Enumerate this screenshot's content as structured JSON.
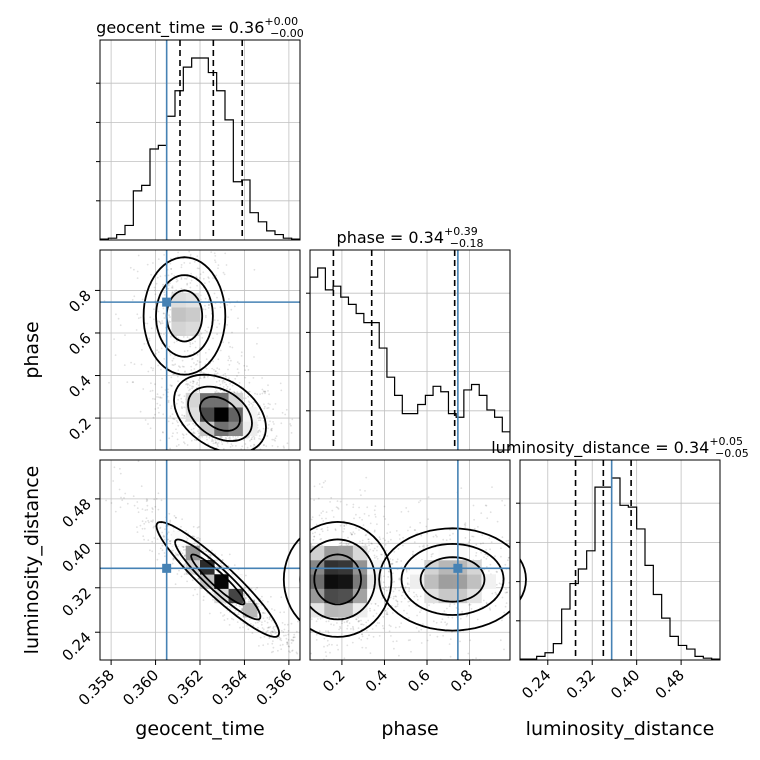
{
  "chart_data": {
    "type": "corner",
    "parameters": [
      "geocent_time",
      "phase",
      "luminosity_distance"
    ],
    "truths": {
      "geocent_time": 0.3605,
      "phase": 0.745,
      "luminosity_distance": 0.355
    },
    "colors": {
      "truth": "#4682b4",
      "hist": "#000000",
      "grid": "#c0c0c0",
      "scatter": "#000000"
    },
    "titles": [
      {
        "param": "geocent_time",
        "prefix": "geocent_time = 0.36",
        "plus": "+0.00",
        "minus": "−0.00",
        "quantiles": [
          0.3611,
          0.3626,
          0.3639
        ]
      },
      {
        "param": "phase",
        "prefix": "phase = 0.34",
        "plus": "+0.39",
        "minus": "−0.18",
        "quantiles": [
          0.16,
          0.34,
          0.73
        ]
      },
      {
        "param": "luminosity_distance",
        "prefix": "luminosity_distance = 0.34",
        "plus": "+0.05",
        "minus": "−0.05",
        "quantiles": [
          0.29,
          0.34,
          0.39
        ]
      }
    ],
    "axes": {
      "geocent_time": {
        "range": [
          0.3575,
          0.3665
        ],
        "ticks": [
          0.358,
          0.36,
          0.362,
          0.364,
          0.366
        ],
        "tick_labels": [
          "0.358",
          "0.360",
          "0.362",
          "0.364",
          "0.366"
        ],
        "label": "geocent_time"
      },
      "phase": {
        "range": [
          0.05,
          0.99
        ],
        "ticks": [
          0.2,
          0.4,
          0.6,
          0.8
        ],
        "tick_labels": [
          "0.2",
          "0.4",
          "0.6",
          "0.8"
        ],
        "label": "phase"
      },
      "luminosity_distance": {
        "range": [
          0.19,
          0.55
        ],
        "ticks": [
          0.24,
          0.32,
          0.4,
          0.48
        ],
        "tick_labels": [
          "0.24",
          "0.32",
          "0.40",
          "0.48"
        ],
        "label": "luminosity_distance"
      }
    },
    "histograms": {
      "geocent_time": {
        "counts": [
          0.5,
          1,
          3,
          8,
          27,
          30,
          50,
          52,
          68,
          82,
          95,
          100,
          100,
          92,
          82,
          66,
          32,
          33,
          15,
          10,
          5,
          3,
          1,
          0.5
        ]
      },
      "phase": {
        "counts": [
          95,
          100,
          88,
          90,
          84,
          80,
          75,
          70,
          70,
          56,
          40,
          30,
          20,
          20,
          25,
          30,
          35,
          32,
          20,
          18,
          33,
          36,
          30,
          22,
          18,
          10
        ]
      },
      "luminosity_distance": {
        "counts": [
          0.5,
          0.5,
          2,
          4,
          9,
          28,
          42,
          50,
          60,
          95,
          95,
          100,
          85,
          84,
          72,
          52,
          36,
          23,
          13,
          8,
          6,
          2,
          1,
          0.5
        ]
      }
    },
    "joint_2d": [
      {
        "x": "geocent_time",
        "y": "phase",
        "modes": [
          {
            "cx": 0.3629,
            "cy": 0.22,
            "sx": 0.0009,
            "sy": 0.08,
            "rho": -0.35,
            "w": 1.0
          },
          {
            "cx": 0.3613,
            "cy": 0.68,
            "sx": 0.0008,
            "sy": 0.12,
            "rho": 0.0,
            "w": 0.45
          }
        ]
      },
      {
        "x": "geocent_time",
        "y": "luminosity_distance",
        "modes": [
          {
            "cx": 0.3628,
            "cy": 0.335,
            "sx": 0.0012,
            "sy": 0.045,
            "rho": -0.93,
            "w": 1.0
          }
        ]
      },
      {
        "x": "phase",
        "y": "luminosity_distance",
        "modes": [
          {
            "cx": 0.18,
            "cy": 0.335,
            "sx": 0.11,
            "sy": 0.045,
            "rho": 0.0,
            "w": 1.0
          },
          {
            "cx": 0.72,
            "cy": 0.335,
            "sx": 0.15,
            "sy": 0.04,
            "rho": 0.0,
            "w": 0.55
          }
        ]
      }
    ]
  }
}
